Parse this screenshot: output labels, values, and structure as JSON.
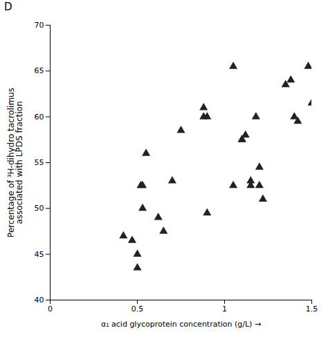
{
  "chart_data": {
    "type": "scatter",
    "title": "D",
    "x": [
      0.42,
      0.47,
      0.5,
      0.5,
      0.52,
      0.53,
      0.53,
      0.55,
      0.62,
      0.65,
      0.7,
      0.75,
      0.88,
      0.88,
      0.9,
      0.9,
      1.05,
      1.05,
      1.1,
      1.1,
      1.12,
      1.15,
      1.15,
      1.18,
      1.2,
      1.2,
      1.22,
      1.35,
      1.38,
      1.4,
      1.42,
      1.48,
      1.5
    ],
    "values": [
      47.0,
      46.5,
      45.0,
      43.5,
      52.5,
      52.5,
      50.0,
      56.0,
      49.0,
      47.5,
      53.0,
      58.5,
      60.0,
      61.0,
      60.0,
      49.5,
      65.5,
      52.5,
      57.5,
      57.5,
      58.0,
      53.0,
      52.5,
      60.0,
      54.5,
      52.5,
      51.0,
      63.5,
      64.0,
      60.0,
      59.5,
      65.5,
      61.5
    ],
    "xlabel": "α₁ acid glycoprotein concentration (g/L)",
    "ylabel": "Percentage of ³H-dihydro tacrolimus\nassociated with LPDS fraction",
    "xlim": [
      0,
      1.5
    ],
    "ylim": [
      40,
      70
    ],
    "xticks": [
      0,
      0.5,
      1,
      1.5
    ],
    "yticks": [
      40,
      45,
      50,
      55,
      60,
      65,
      70
    ],
    "color": "#222222",
    "marker": "triangle",
    "grid": false
  }
}
